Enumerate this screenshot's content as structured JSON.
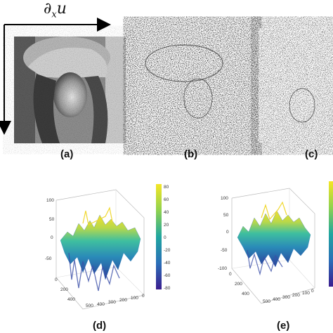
{
  "derivative": {
    "symbol": "∂",
    "subscript": "x",
    "variable": "u"
  },
  "captions": {
    "a": "(a)",
    "b": "(b)",
    "c": "(c)",
    "d": "(d)",
    "e": "(e)"
  },
  "plot_d": {
    "z_ticks": [
      "100",
      "50",
      "0",
      "-50"
    ],
    "y_ticks": [
      "0",
      "200",
      "400"
    ],
    "x_ticks": [
      "500",
      "400",
      "300",
      "200",
      "100",
      "0"
    ],
    "colorbar_ticks": [
      "80",
      "60",
      "40",
      "20",
      "0",
      "-20",
      "-40",
      "-60",
      "-80"
    ]
  },
  "plot_e": {
    "z_ticks": [
      "100",
      "50",
      "0",
      "-50",
      "-100"
    ],
    "y_ticks": [
      "0",
      "200",
      "400"
    ],
    "x_ticks": [
      "500",
      "400",
      "300",
      "200",
      "100",
      "0"
    ]
  },
  "colors": {
    "cmap": [
      "#3b1d8f",
      "#2a6fb8",
      "#1fa6a0",
      "#5cc46a",
      "#d8d838",
      "#f5e625"
    ]
  }
}
